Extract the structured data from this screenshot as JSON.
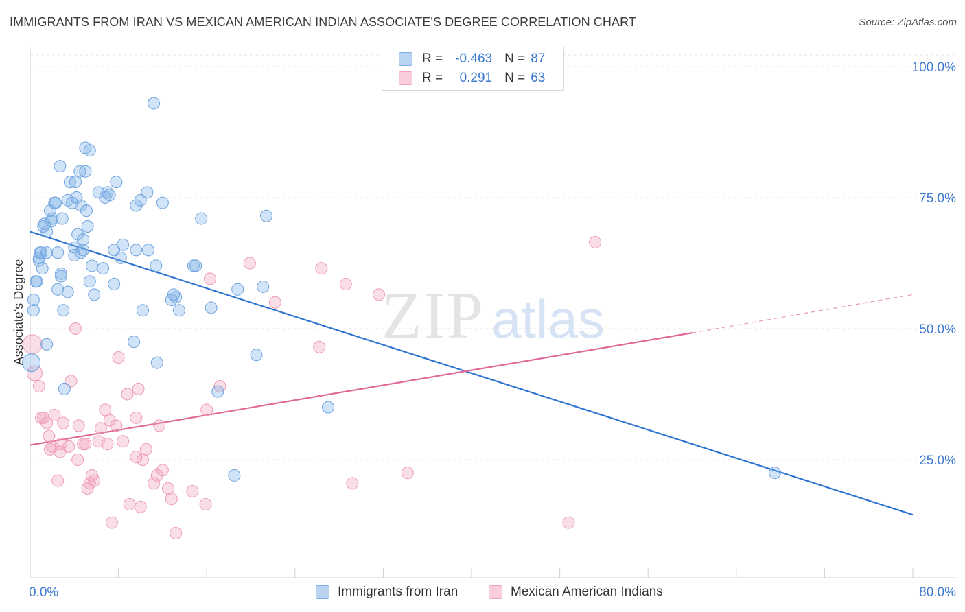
{
  "title": "IMMIGRANTS FROM IRAN VS MEXICAN AMERICAN INDIAN ASSOCIATE'S DEGREE CORRELATION CHART",
  "source": "Source: ZipAtlas.com",
  "watermark": {
    "zip": "ZIP",
    "atlas": "atlas"
  },
  "colors": {
    "blue": "#7baee6",
    "blue_line": "#2f74d0",
    "pink": "#f2a0bb",
    "pink_line": "#e0699a",
    "axis_label": "#3b78d0"
  },
  "stats": {
    "rows": [
      {
        "r_label": "R =",
        "r_value": "-0.463",
        "n_label": "N =",
        "n_value": "87"
      },
      {
        "r_label": "R =",
        "r_value": "0.291",
        "n_label": "N =",
        "n_value": "63"
      }
    ]
  },
  "legend": {
    "series1": "Immigrants from Iran",
    "series2": "Mexican American Indians"
  },
  "chart_data": {
    "type": "scatter",
    "ylabel": "Associate's Degree",
    "xlim": [
      0,
      80
    ],
    "ylim": [
      0,
      100
    ],
    "x_tick_labels": [
      "0.0%",
      "80.0%"
    ],
    "y_tick_labels": [
      "100.0%",
      "75.0%",
      "50.0%",
      "25.0%"
    ],
    "y_ticks": [
      100,
      75,
      50,
      25
    ],
    "series": [
      {
        "name": "Immigrants from Iran",
        "color": "#7baee6",
        "trend": {
          "x": [
            0,
            80
          ],
          "y": [
            68.5,
            14.5
          ]
        },
        "points": [
          [
            0.3,
            55.5
          ],
          [
            0.3,
            53.5
          ],
          [
            0.5,
            59
          ],
          [
            0.6,
            59
          ],
          [
            0.8,
            63
          ],
          [
            0.8,
            63.5
          ],
          [
            0.9,
            64.5
          ],
          [
            1.0,
            64.5
          ],
          [
            1.1,
            61.5
          ],
          [
            1.2,
            69.5
          ],
          [
            1.3,
            70
          ],
          [
            1.5,
            68.5
          ],
          [
            1.5,
            64.5
          ],
          [
            1.5,
            47
          ],
          [
            1.8,
            72.5
          ],
          [
            1.9,
            70.5
          ],
          [
            2.0,
            71
          ],
          [
            2.2,
            74
          ],
          [
            2.3,
            74
          ],
          [
            2.5,
            64.5
          ],
          [
            2.5,
            57.5
          ],
          [
            2.7,
            81
          ],
          [
            2.8,
            60.5
          ],
          [
            2.8,
            60
          ],
          [
            2.9,
            71
          ],
          [
            3.0,
            53.5
          ],
          [
            3.1,
            38.5
          ],
          [
            3.4,
            57
          ],
          [
            3.4,
            74.5
          ],
          [
            3.6,
            78
          ],
          [
            3.8,
            74
          ],
          [
            4.0,
            65.5
          ],
          [
            4.0,
            64
          ],
          [
            4.1,
            78
          ],
          [
            4.2,
            75
          ],
          [
            4.3,
            68
          ],
          [
            4.5,
            80
          ],
          [
            4.6,
            64.5
          ],
          [
            4.6,
            73.5
          ],
          [
            4.8,
            67
          ],
          [
            4.8,
            65
          ],
          [
            5.0,
            84.5
          ],
          [
            5.0,
            80
          ],
          [
            5.1,
            72.5
          ],
          [
            5.2,
            69.5
          ],
          [
            5.4,
            84
          ],
          [
            5.4,
            59
          ],
          [
            5.6,
            62
          ],
          [
            5.8,
            56.5
          ],
          [
            6.2,
            76
          ],
          [
            6.6,
            61.5
          ],
          [
            6.8,
            75
          ],
          [
            7.0,
            76
          ],
          [
            7.2,
            75.5
          ],
          [
            7.6,
            58.5
          ],
          [
            7.6,
            65
          ],
          [
            7.8,
            78
          ],
          [
            8.2,
            63.5
          ],
          [
            8.4,
            66
          ],
          [
            9.4,
            47.5
          ],
          [
            9.6,
            73.5
          ],
          [
            9.6,
            65
          ],
          [
            10.0,
            74.5
          ],
          [
            10.2,
            53.5
          ],
          [
            10.6,
            76
          ],
          [
            10.7,
            65
          ],
          [
            11.2,
            93
          ],
          [
            11.4,
            62
          ],
          [
            11.5,
            43.5
          ],
          [
            12.0,
            74
          ],
          [
            12.8,
            55.5
          ],
          [
            13.0,
            56.5
          ],
          [
            13.2,
            56
          ],
          [
            13.5,
            53.5
          ],
          [
            14.8,
            62
          ],
          [
            15.0,
            62
          ],
          [
            15.5,
            71
          ],
          [
            16.4,
            54
          ],
          [
            17.0,
            38
          ],
          [
            18.5,
            22
          ],
          [
            18.8,
            57.5
          ],
          [
            20.5,
            45
          ],
          [
            21.1,
            58
          ],
          [
            21.4,
            71.5
          ],
          [
            27.0,
            35
          ],
          [
            67.5,
            22.5
          ]
        ]
      },
      {
        "name": "Mexican American Indians",
        "color": "#f2a0bb",
        "trend": {
          "x": [
            0,
            60
          ],
          "y": [
            27.8,
            49.2
          ]
        },
        "trend_dashed": {
          "x": [
            60,
            80
          ],
          "y": [
            49.2,
            56.5
          ]
        },
        "points": [
          [
            0.2,
            47
          ],
          [
            0.4,
            41.5
          ],
          [
            0.8,
            39
          ],
          [
            1.0,
            33
          ],
          [
            1.2,
            33
          ],
          [
            1.5,
            32
          ],
          [
            1.7,
            29.5
          ],
          [
            1.8,
            27
          ],
          [
            2.0,
            27.5
          ],
          [
            2.2,
            33.5
          ],
          [
            2.5,
            21
          ],
          [
            2.7,
            26.5
          ],
          [
            2.8,
            28
          ],
          [
            3.0,
            32
          ],
          [
            3.5,
            27.5
          ],
          [
            3.7,
            40
          ],
          [
            4.1,
            50
          ],
          [
            4.3,
            25
          ],
          [
            4.4,
            31.5
          ],
          [
            4.8,
            28
          ],
          [
            5.0,
            28
          ],
          [
            5.2,
            19.5
          ],
          [
            5.4,
            20.5
          ],
          [
            5.6,
            22
          ],
          [
            5.8,
            21
          ],
          [
            6.2,
            28.5
          ],
          [
            6.4,
            31
          ],
          [
            6.8,
            34.5
          ],
          [
            7.0,
            28
          ],
          [
            7.2,
            32.5
          ],
          [
            7.4,
            13
          ],
          [
            7.8,
            31.5
          ],
          [
            8.0,
            44.5
          ],
          [
            8.4,
            28.5
          ],
          [
            8.8,
            37.5
          ],
          [
            9.0,
            16.5
          ],
          [
            9.6,
            25.5
          ],
          [
            9.6,
            33
          ],
          [
            9.8,
            38.5
          ],
          [
            10.0,
            16
          ],
          [
            10.2,
            25
          ],
          [
            10.5,
            27
          ],
          [
            11.2,
            20.5
          ],
          [
            11.5,
            22
          ],
          [
            11.7,
            31.5
          ],
          [
            12.0,
            23
          ],
          [
            12.5,
            19.5
          ],
          [
            12.8,
            17.5
          ],
          [
            13.2,
            11
          ],
          [
            14.7,
            19
          ],
          [
            15.9,
            16.5
          ],
          [
            16.0,
            34.5
          ],
          [
            16.3,
            59.5
          ],
          [
            17.2,
            39
          ],
          [
            19.9,
            62.5
          ],
          [
            22.2,
            55
          ],
          [
            26.2,
            46.5
          ],
          [
            26.4,
            61.5
          ],
          [
            28.6,
            58.5
          ],
          [
            29.2,
            20.5
          ],
          [
            31.6,
            56.5
          ],
          [
            34.2,
            22.5
          ],
          [
            48.8,
            13
          ],
          [
            51.2,
            66.5
          ]
        ]
      }
    ]
  }
}
